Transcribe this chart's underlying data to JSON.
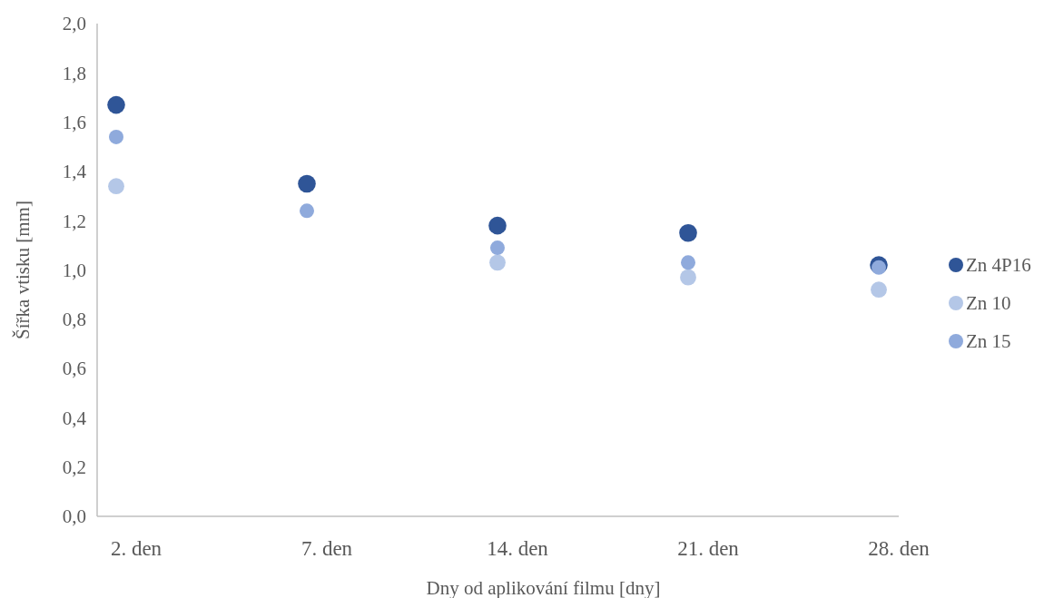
{
  "chart_data": {
    "type": "scatter",
    "xlabel": "Dny od aplikování filmu [dny]",
    "ylabel": "Šířka vtisku [mm]",
    "categories": [
      "2. den",
      "7. den",
      "14. den",
      "21. den",
      "28. den"
    ],
    "series": [
      {
        "name": "Zn 4P16",
        "color": "#2f5597",
        "values": [
          1.67,
          1.35,
          1.18,
          1.15,
          1.02
        ]
      },
      {
        "name": "Zn 10",
        "color": "#b4c7e7",
        "values": [
          1.34,
          null,
          1.03,
          0.97,
          0.92
        ]
      },
      {
        "name": "Zn 15",
        "color": "#8faadc",
        "values": [
          1.54,
          1.24,
          1.09,
          1.03,
          1.01
        ]
      }
    ],
    "ylim": [
      0,
      2
    ],
    "yticks": [
      {
        "value": 0,
        "label": "0,0"
      },
      {
        "value": 0.2,
        "label": "0,2"
      },
      {
        "value": 0.4,
        "label": "0,4"
      },
      {
        "value": 0.6,
        "label": "0,6"
      },
      {
        "value": 0.8,
        "label": "0,8"
      },
      {
        "value": 1,
        "label": "1,0"
      },
      {
        "value": 1.2,
        "label": "1,2"
      },
      {
        "value": 1.4,
        "label": "1,4"
      },
      {
        "value": 1.6,
        "label": "1,6"
      },
      {
        "value": 1.8,
        "label": "1,8"
      },
      {
        "value": 2,
        "label": "2,0"
      }
    ],
    "marker": "circle",
    "legend": "right",
    "grid": false
  }
}
